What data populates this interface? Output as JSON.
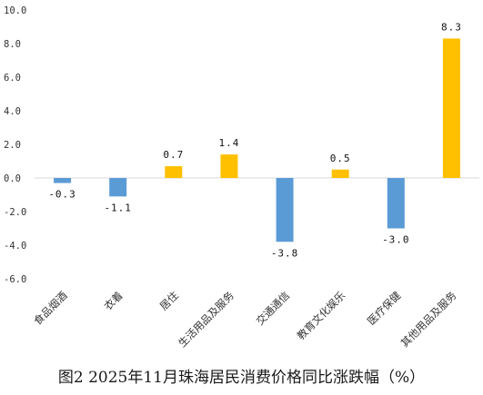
{
  "caption": "图2 2025年11月珠海居民消费价格同比涨跌幅（%）",
  "colors": {
    "negative": "#5B9BD5",
    "positive": "#FFC000",
    "axis": "#D9D9D9",
    "text": "#333333"
  },
  "chart_data": {
    "type": "bar",
    "title": "图2 2025年11月珠海居民消费价格同比涨跌幅（%）",
    "categories": [
      "食品烟酒",
      "衣着",
      "居住",
      "生活用品及服务",
      "交通通信",
      "教育文化娱乐",
      "医疗保健",
      "其他用品及服务"
    ],
    "values": [
      -0.3,
      -1.1,
      0.7,
      1.4,
      -3.8,
      0.5,
      -3.0,
      8.3
    ],
    "data_labels": [
      "-0.3",
      "-1.1",
      "0.7",
      "1.4",
      "-3.8",
      "0.5",
      "-3.0",
      "8.3"
    ],
    "yticks": [
      "10.0",
      "8.0",
      "6.0",
      "4.0",
      "2.0",
      "0.0",
      "-2.0",
      "-4.0",
      "-6.0"
    ],
    "ytick_values": [
      10,
      8,
      6,
      4,
      2,
      0,
      -2,
      -4,
      -6
    ],
    "ylim": [
      -6,
      10
    ],
    "xlabel": "",
    "ylabel": "",
    "grid": false,
    "legend": "none"
  }
}
